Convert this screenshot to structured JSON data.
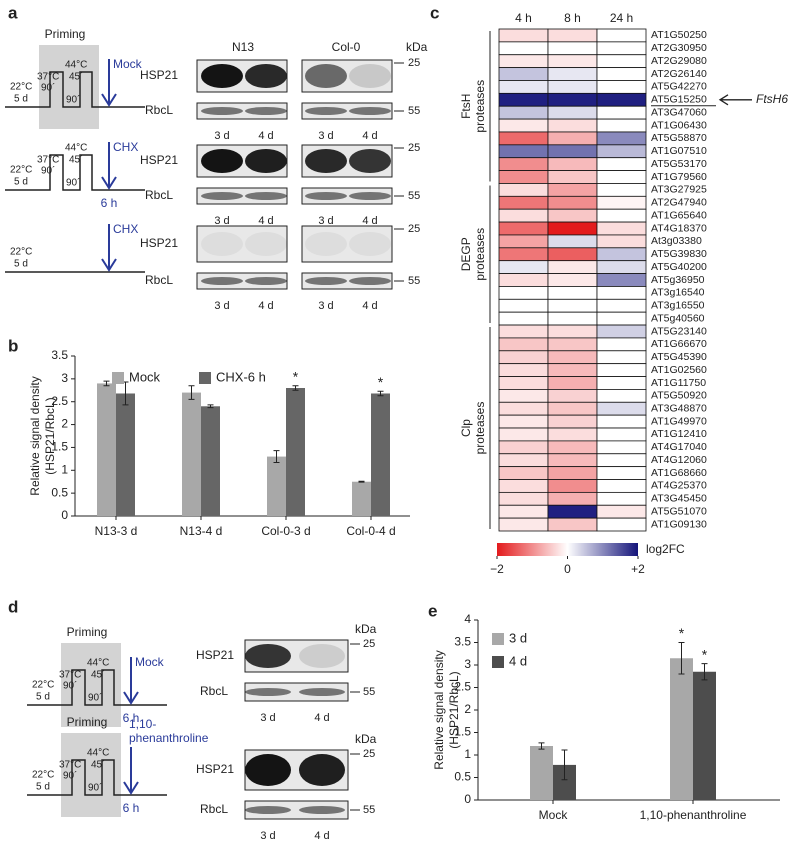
{
  "panel_labels": [
    "a",
    "b",
    "c",
    "d",
    "e"
  ],
  "a": {
    "protocols": [
      {
        "title": "Priming",
        "start": [
          "22°C",
          "5 d"
        ],
        "pulse1": [
          "37°C",
          "90´"
        ],
        "pulse2": [
          "44°C",
          "45´"
        ],
        "gap": "90´",
        "treatment": [
          "Mock"
        ]
      },
      {
        "start": [
          "22°C",
          "5 d"
        ],
        "pulse1": [
          "37°C",
          "90´"
        ],
        "pulse2": [
          "44°C",
          "45´"
        ],
        "gap": "90´",
        "treatment": [
          "CHX"
        ],
        "duration": "6 h"
      },
      {
        "start": [
          "22°C",
          "5 d"
        ],
        "treatment": [
          "CHX"
        ]
      }
    ],
    "genotypes": [
      "N13",
      "Col-0"
    ],
    "kda": "kDa",
    "blots": [
      {
        "hsp": "HSP21",
        "rbcl": "RbcL",
        "lanes": [
          "3 d",
          "4 d",
          "3 d",
          "4 d"
        ],
        "markers": [
          "25",
          "55"
        ]
      },
      {
        "hsp": "HSP21",
        "rbcl": "RbcL",
        "lanes": [
          "3 d",
          "4 d",
          "3 d",
          "4 d"
        ],
        "markers": [
          "25",
          "55"
        ]
      },
      {
        "hsp": "HSP21",
        "rbcl": "RbcL",
        "lanes": [
          "3 d",
          "4 d",
          "3 d",
          "4 d"
        ],
        "markers": [
          "25",
          "55"
        ]
      }
    ]
  },
  "d": {
    "protocols": [
      {
        "title": "Priming",
        "start": [
          "22°C",
          "5 d"
        ],
        "pulse1": [
          "37°C",
          "90´"
        ],
        "pulse2": [
          "44°C",
          "45´"
        ],
        "gap": "90´",
        "treatment": [
          "Mock"
        ],
        "duration": "6 h"
      },
      {
        "title": "Priming",
        "start": [
          "22°C",
          "5 d"
        ],
        "pulse1": [
          "37°C",
          "90´"
        ],
        "pulse2": [
          "44°C",
          "45´"
        ],
        "gap": "90´",
        "treatment": [
          "1,10-",
          "phenanthroline"
        ],
        "duration": "6 h"
      }
    ],
    "blots": [
      {
        "kda": "kDa",
        "hsp": "HSP21",
        "rbcl": "RbcL",
        "lanes": [
          "3 d",
          "4 d"
        ],
        "markers": [
          "25",
          "55"
        ]
      },
      {
        "kda": "kDa",
        "hsp": "HSP21",
        "rbcl": "RbcL",
        "lanes": [
          "3 d",
          "4 d"
        ],
        "markers": [
          "25",
          "55"
        ]
      }
    ]
  },
  "chart_data": [
    {
      "type": "bar",
      "ylabel": [
        "Relative signal density",
        "(HSP21/RbcL)"
      ],
      "categories": [
        "N13-3 d",
        "N13-4 d",
        "Col-0-3 d",
        "Col-0-4 d"
      ],
      "series": [
        {
          "name": "Mock",
          "color": "#a8a8a8",
          "values": [
            2.9,
            2.7,
            1.3,
            0.75
          ],
          "errors": [
            0.05,
            0.15,
            0.13,
            0.01
          ],
          "significance": [
            null,
            null,
            null,
            null
          ]
        },
        {
          "name": "CHX-6 h",
          "color": "#666666",
          "values": [
            2.68,
            2.4,
            2.8,
            2.68
          ],
          "errors": [
            0.25,
            0.03,
            0.05,
            0.05
          ],
          "significance": [
            null,
            null,
            "*",
            "*"
          ]
        }
      ],
      "ylim": [
        0,
        3.5
      ],
      "yticks": [
        0,
        0.5,
        1,
        1.5,
        2,
        2.5,
        3,
        3.5
      ],
      "legend": "upper left"
    },
    {
      "type": "heatmap",
      "columns": [
        "4 h",
        "8 h",
        "24 h"
      ],
      "rows": [
        "AT1G50250",
        "AT2G30950",
        "AT2G29080",
        "AT2G26140",
        "AT5G42270",
        "AT5G15250",
        "AT3G47060",
        "AT1G06430",
        "AT5G58870",
        "AT1G07510",
        "AT5G53170",
        "AT1G79560",
        "AT3G27925",
        "AT2G47940",
        "AT1G65640",
        "AT4G18370",
        "At3g03380",
        "AT5G39830",
        "AT5G40200",
        "AT5g36950",
        "AT3g16540",
        "AT3g16550",
        "AT5g40560",
        "AT5G23140",
        "AT1G66670",
        "AT5G45390",
        "AT1G02560",
        "AT1G11750",
        "AT5G50920",
        "AT3G48870",
        "AT1G49970",
        "AT1G12410",
        "AT4G17040",
        "AT4G12060",
        "AT1G68660",
        "AT4G25370",
        "AT3G45450",
        "AT5G51070",
        "AT1G09130"
      ],
      "values": [
        [
          -0.3,
          -0.3,
          0
        ],
        [
          0,
          0,
          0
        ],
        [
          -0.2,
          -0.2,
          0
        ],
        [
          0.5,
          0.2,
          0
        ],
        [
          0.2,
          0.2,
          0
        ],
        [
          1.9,
          1.9,
          1.9
        ],
        [
          0.5,
          0.3,
          0
        ],
        [
          -0.2,
          -0.3,
          0
        ],
        [
          -1.3,
          -0.7,
          1
        ],
        [
          1.2,
          1.2,
          0.6
        ],
        [
          -1,
          -0.6,
          0
        ],
        [
          -1,
          -0.5,
          0
        ],
        [
          -0.3,
          -0.8,
          0
        ],
        [
          -1.2,
          -1,
          -0.1
        ],
        [
          -0.3,
          -0.5,
          0
        ],
        [
          -1.3,
          -2,
          -0.3
        ],
        [
          -0.8,
          0.3,
          -0.3
        ],
        [
          -1.2,
          -1.4,
          0.5
        ],
        [
          0.2,
          -0.2,
          0.3
        ],
        [
          -0.3,
          -0.2,
          1
        ],
        [
          0,
          0,
          0
        ],
        [
          0,
          0,
          0
        ],
        [
          0,
          0,
          0
        ],
        [
          -0.3,
          -0.3,
          0.4
        ],
        [
          -0.5,
          -0.5,
          0
        ],
        [
          -0.4,
          -0.6,
          0
        ],
        [
          -0.3,
          -0.6,
          0
        ],
        [
          -0.3,
          -0.7,
          0
        ],
        [
          -0.2,
          -0.4,
          0
        ],
        [
          -0.3,
          -0.5,
          0.3
        ],
        [
          -0.2,
          -0.4,
          0
        ],
        [
          -0.2,
          -0.3,
          0
        ],
        [
          -0.4,
          -0.6,
          0
        ],
        [
          -0.3,
          -0.6,
          0
        ],
        [
          -0.5,
          -0.8,
          0
        ],
        [
          -0.3,
          -1,
          0
        ],
        [
          -0.3,
          -0.7,
          0
        ],
        [
          -0.2,
          1.9,
          -0.2
        ],
        [
          -0.2,
          -0.5,
          0
        ]
      ],
      "groups": [
        {
          "label": [
            "FtsH",
            "proteases"
          ],
          "size": 12
        },
        {
          "label": [
            "DEGP",
            "proteases"
          ],
          "size": 11
        },
        {
          "label": [
            "Clp",
            "proteases"
          ],
          "size": 16
        }
      ],
      "annotation": {
        "text": "FtsH6",
        "row": 5
      },
      "clim": [
        -2,
        2
      ],
      "cticks": [
        {
          "value": -2,
          "label": "−2"
        },
        0,
        {
          "value": 2,
          "label": "+2"
        }
      ],
      "clabel": "log2FC",
      "cmap": [
        "#e31a1c",
        "#ffffff",
        "#14147a"
      ]
    },
    {
      "type": "bar",
      "ylabel": [
        "Relative signal density",
        "(HSP21/RbcL)"
      ],
      "categories": [
        "Mock",
        "1,10-phenanthroline"
      ],
      "series": [
        {
          "name": "3 d",
          "color": "#a8a8a8",
          "values": [
            1.2,
            3.15
          ],
          "errors": [
            0.07,
            0.35
          ],
          "significance": [
            null,
            "*"
          ]
        },
        {
          "name": "4 d",
          "color": "#4d4d4d",
          "values": [
            0.78,
            2.85
          ],
          "errors": [
            0.33,
            0.18
          ],
          "significance": [
            null,
            "*"
          ]
        }
      ],
      "ylim": [
        0,
        4
      ],
      "yticks": [
        0,
        0.5,
        1,
        1.5,
        2,
        2.5,
        3,
        3.5,
        4
      ],
      "legend": "upper left"
    }
  ]
}
